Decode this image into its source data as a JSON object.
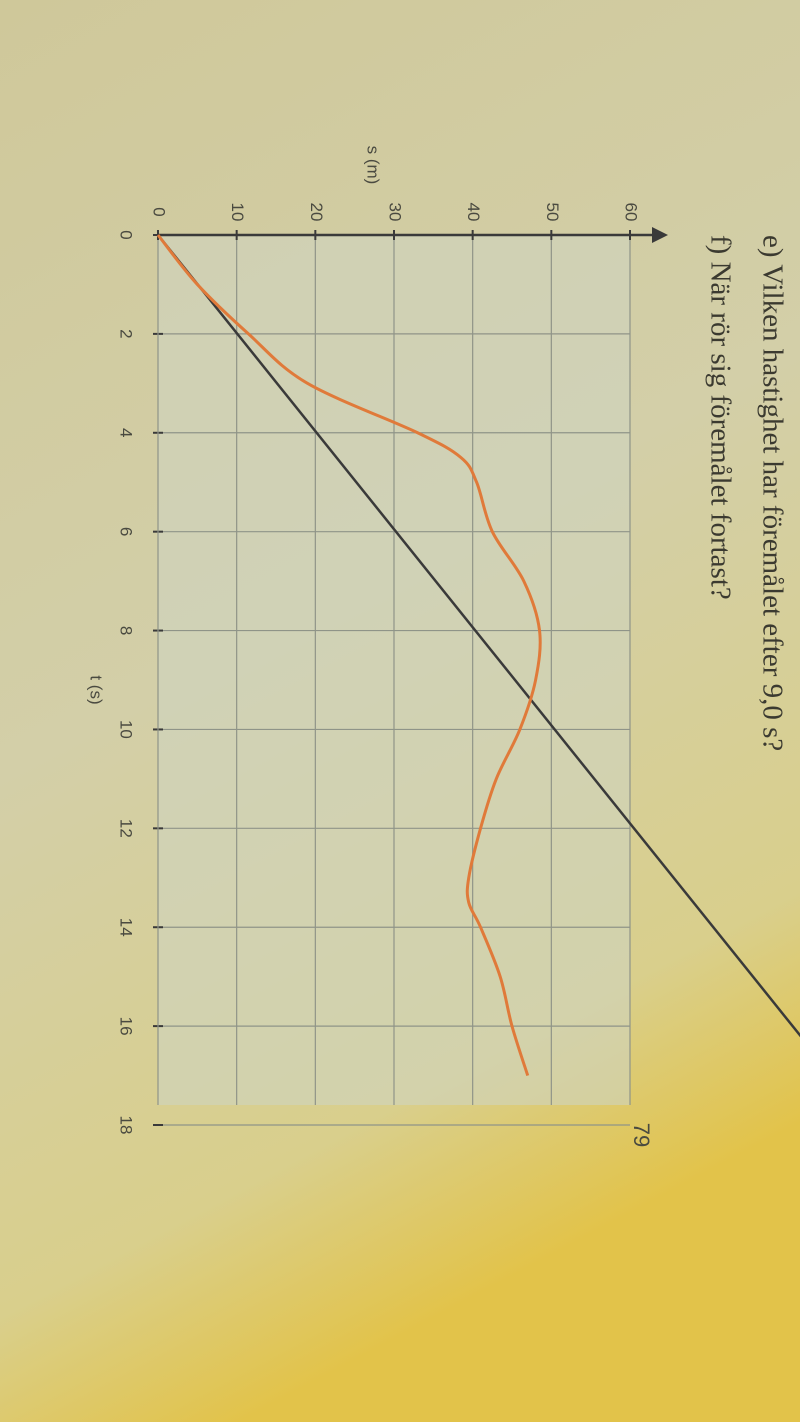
{
  "questions": [
    "e) Vilken hastighet har föremålet efter 9,0 s?",
    "f) När rör sig föremålet fortast?"
  ],
  "page_number": "79",
  "chart_data": {
    "type": "line",
    "ylabel": "s (m)",
    "xlabel": "t (s)",
    "x": [
      0,
      1,
      2,
      3,
      4,
      4.5,
      5,
      6,
      7,
      8,
      9,
      10,
      11,
      12,
      13,
      13.5,
      14,
      15,
      16,
      17
    ],
    "series": [
      {
        "color": "#e07a3a",
        "values": [
          0,
          5,
          11.5,
          19,
          33,
          38.5,
          40.5,
          42.5,
          46.5,
          48.5,
          48,
          46,
          43,
          41,
          39.5,
          39.5,
          41,
          43.5,
          45,
          47
        ]
      }
    ],
    "xlim": [
      0,
      18
    ],
    "xticks": [
      0,
      2,
      4,
      6,
      8,
      10,
      12,
      14,
      16,
      18
    ],
    "ylim": [
      0,
      60
    ],
    "yticks": [
      0,
      10,
      20,
      30,
      40,
      50,
      60
    ],
    "grid": true
  }
}
